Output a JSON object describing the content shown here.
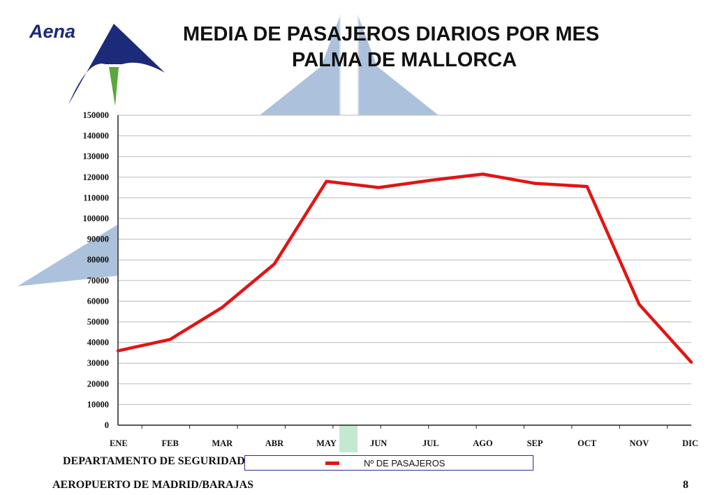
{
  "header": {
    "brand": "Aena",
    "title_line1": "MEDIA DE PASAJEROS DIARIOS POR MES",
    "title_line2": "PALMA DE MALLORCA"
  },
  "footer": {
    "department": "DEPARTAMENTO DE SEGURIDAD",
    "airport": "AEROPUERTO DE MADRID/BARAJAS",
    "page_number": "8"
  },
  "colors": {
    "series_line": "#e31414",
    "logo_blue": "#1c2a7a",
    "logo_green": "#5aa83c",
    "watermark_blue": "#9db6d6",
    "gridline": "#bbbbbb"
  },
  "chart_data": {
    "type": "line",
    "title": "MEDIA DE PASAJEROS DIARIOS POR MES",
    "subtitle": "PALMA DE MALLORCA",
    "categories": [
      "ENE",
      "FEB",
      "MAR",
      "ABR",
      "MAY",
      "JUN",
      "JUL",
      "AGO",
      "SEP",
      "OCT",
      "NOV",
      "DIC"
    ],
    "series": [
      {
        "name": "Nº DE PASAJEROS",
        "values": [
          36000,
          41500,
          57000,
          78000,
          118000,
          115000,
          118500,
          121500,
          117000,
          115500,
          58500,
          30500
        ]
      }
    ],
    "ylim": [
      0,
      150000
    ],
    "yticks": [
      0,
      10000,
      20000,
      30000,
      40000,
      50000,
      60000,
      70000,
      80000,
      90000,
      100000,
      110000,
      120000,
      130000,
      140000,
      150000
    ],
    "grid": true,
    "legend_position": "bottom"
  }
}
